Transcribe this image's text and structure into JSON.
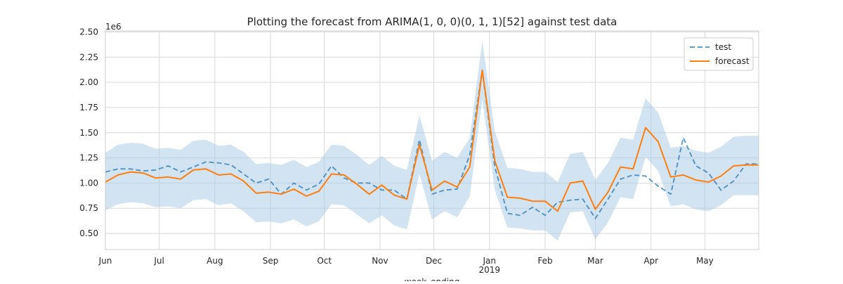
{
  "chart_data": {
    "type": "line",
    "title": "Plotting the forecast from ARIMA(1, 0, 0)(0, 1, 1)[52] against test data",
    "xlabel": "week_ending",
    "ylabel": "",
    "y_offset_label": "1e6",
    "ylim": [
      0.34,
      2.51
    ],
    "xlim": [
      "2018-06-01",
      "2019-05-31"
    ],
    "grid": true,
    "legend_position": "top-right",
    "y_ticks": [
      {
        "value": 0.5,
        "label": "0.50"
      },
      {
        "value": 0.75,
        "label": "0.75"
      },
      {
        "value": 1.0,
        "label": "1.00"
      },
      {
        "value": 1.25,
        "label": "1.25"
      },
      {
        "value": 1.5,
        "label": "1.50"
      },
      {
        "value": 1.75,
        "label": "1.75"
      },
      {
        "value": 2.0,
        "label": "2.00"
      },
      {
        "value": 2.25,
        "label": "2.25"
      },
      {
        "value": 2.5,
        "label": "2.50"
      }
    ],
    "x_ticks": [
      {
        "date": "2018-06-01",
        "label": "Jun",
        "sublabel": ""
      },
      {
        "date": "2018-07-01",
        "label": "Jul",
        "sublabel": ""
      },
      {
        "date": "2018-08-01",
        "label": "Aug",
        "sublabel": ""
      },
      {
        "date": "2018-09-01",
        "label": "Sep",
        "sublabel": ""
      },
      {
        "date": "2018-10-01",
        "label": "Oct",
        "sublabel": ""
      },
      {
        "date": "2018-11-01",
        "label": "Nov",
        "sublabel": ""
      },
      {
        "date": "2018-12-01",
        "label": "Dec",
        "sublabel": ""
      },
      {
        "date": "2019-01-01",
        "label": "Jan",
        "sublabel": "2019"
      },
      {
        "date": "2019-02-01",
        "label": "Feb",
        "sublabel": ""
      },
      {
        "date": "2019-03-01",
        "label": "Mar",
        "sublabel": ""
      },
      {
        "date": "2019-04-01",
        "label": "Apr",
        "sublabel": ""
      },
      {
        "date": "2019-05-01",
        "label": "May",
        "sublabel": ""
      }
    ],
    "x": [
      "2018-06-01",
      "2018-06-08",
      "2018-06-15",
      "2018-06-22",
      "2018-06-29",
      "2018-07-06",
      "2018-07-13",
      "2018-07-20",
      "2018-07-27",
      "2018-08-03",
      "2018-08-10",
      "2018-08-17",
      "2018-08-24",
      "2018-08-31",
      "2018-09-07",
      "2018-09-14",
      "2018-09-21",
      "2018-09-28",
      "2018-10-05",
      "2018-10-12",
      "2018-10-19",
      "2018-10-26",
      "2018-11-02",
      "2018-11-09",
      "2018-11-16",
      "2018-11-23",
      "2018-11-30",
      "2018-12-07",
      "2018-12-14",
      "2018-12-21",
      "2018-12-28",
      "2019-01-04",
      "2019-01-11",
      "2019-01-18",
      "2019-01-25",
      "2019-02-01",
      "2019-02-08",
      "2019-02-15",
      "2019-02-22",
      "2019-03-01",
      "2019-03-08",
      "2019-03-15",
      "2019-03-22",
      "2019-03-29",
      "2019-04-05",
      "2019-04-12",
      "2019-04-19",
      "2019-04-26",
      "2019-05-03",
      "2019-05-10",
      "2019-05-17",
      "2019-05-24",
      "2019-05-31"
    ],
    "series": [
      {
        "name": "test",
        "color": "#1f77b4",
        "style": "dashed",
        "values": [
          1.11,
          1.14,
          1.14,
          1.12,
          1.13,
          1.17,
          1.11,
          1.16,
          1.21,
          1.2,
          1.18,
          1.09,
          1.0,
          1.04,
          0.89,
          1.0,
          0.93,
          0.99,
          1.17,
          1.05,
          1.0,
          1.0,
          0.93,
          0.93,
          0.84,
          1.43,
          0.89,
          0.93,
          0.94,
          1.28,
          2.12,
          1.16,
          0.7,
          0.68,
          0.76,
          0.68,
          0.81,
          0.83,
          0.84,
          0.65,
          0.84,
          1.04,
          1.08,
          1.07,
          0.97,
          0.89,
          1.45,
          1.17,
          1.1,
          0.93,
          1.02,
          1.19,
          1.19
        ]
      },
      {
        "name": "forecast",
        "color": "#ff7f0e",
        "style": "solid",
        "values": [
          1.01,
          1.08,
          1.11,
          1.1,
          1.05,
          1.06,
          1.04,
          1.13,
          1.14,
          1.08,
          1.09,
          1.02,
          0.9,
          0.91,
          0.89,
          0.94,
          0.87,
          0.92,
          1.09,
          1.08,
          0.99,
          0.89,
          0.98,
          0.88,
          0.84,
          1.38,
          0.93,
          1.02,
          0.96,
          1.16,
          2.12,
          1.22,
          0.86,
          0.85,
          0.82,
          0.82,
          0.72,
          1.0,
          1.02,
          0.74,
          0.91,
          1.16,
          1.14,
          1.55,
          1.41,
          1.06,
          1.08,
          1.03,
          1.01,
          1.07,
          1.17,
          1.18,
          1.18
        ]
      }
    ],
    "confidence_band": {
      "color": "#a6c8e3",
      "lower": [
        0.73,
        0.79,
        0.81,
        0.8,
        0.76,
        0.77,
        0.75,
        0.83,
        0.84,
        0.78,
        0.8,
        0.72,
        0.61,
        0.62,
        0.6,
        0.64,
        0.57,
        0.62,
        0.79,
        0.78,
        0.69,
        0.6,
        0.68,
        0.58,
        0.54,
        1.09,
        0.64,
        0.72,
        0.66,
        0.87,
        1.83,
        0.93,
        0.56,
        0.55,
        0.53,
        0.53,
        0.43,
        0.71,
        0.72,
        0.44,
        0.61,
        0.86,
        0.84,
        1.26,
        1.12,
        0.77,
        0.79,
        0.74,
        0.72,
        0.78,
        0.88,
        0.88,
        0.88
      ],
      "upper": [
        1.3,
        1.38,
        1.4,
        1.39,
        1.34,
        1.35,
        1.33,
        1.42,
        1.43,
        1.37,
        1.38,
        1.31,
        1.19,
        1.2,
        1.18,
        1.23,
        1.16,
        1.21,
        1.38,
        1.37,
        1.28,
        1.18,
        1.27,
        1.17,
        1.13,
        1.67,
        1.22,
        1.31,
        1.25,
        1.45,
        2.41,
        1.51,
        1.15,
        1.14,
        1.11,
        1.11,
        1.01,
        1.29,
        1.31,
        1.03,
        1.2,
        1.45,
        1.43,
        1.84,
        1.7,
        1.35,
        1.37,
        1.32,
        1.3,
        1.36,
        1.46,
        1.47,
        1.47
      ]
    }
  }
}
